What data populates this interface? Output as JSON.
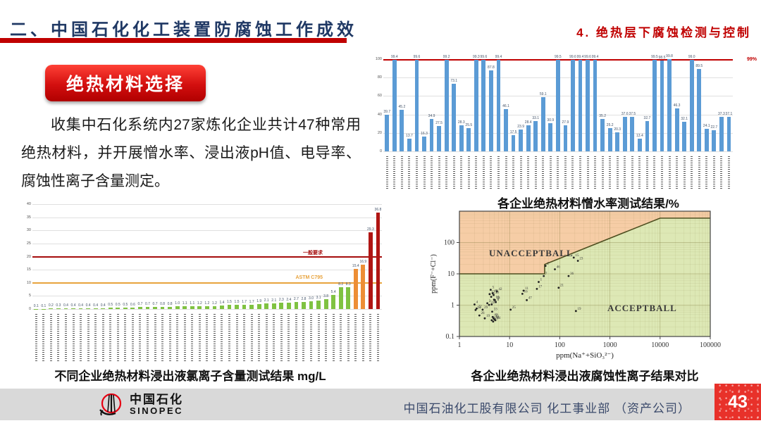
{
  "slide": {
    "title": "二、中国石化化工装置防腐蚀工作成效",
    "section_heading": "4.  绝热层下腐蚀检测与控制",
    "badge": "绝热材料选择",
    "body_text": "收集中石化系统内27家炼化企业共计47种常用绝热材料，并开展憎水率、浸出液pH值、电导率、腐蚀性离子含量测定。",
    "page_number": "43"
  },
  "footer": {
    "logo_cn": "中国石化",
    "logo_en": "SINOPEC",
    "company": "中国石油化工股有限公司  化工事业部 （资产公司）"
  },
  "colors": {
    "accent_red": "#c00000",
    "title_navy": "#1f3864",
    "bar_blue": "#5b9bd5",
    "bar_green": "#7fc241",
    "bar_orange": "#ed8e35",
    "bar_dark_red": "#b01513",
    "scatter_unacceptable_fill": "#f6cda6",
    "scatter_acceptable_fill": "#dde8b5"
  },
  "chart_data": [
    {
      "type": "bar",
      "title": "各企业绝热材料憎水率测试结果/%",
      "ylabel": "",
      "ylim": [
        0,
        100
      ],
      "yticks": [
        0,
        20,
        40,
        60,
        80,
        100
      ],
      "bar_color": "#5b9bd5",
      "ref_lines": [
        {
          "value": 99,
          "label": "99%",
          "color": "#c00000"
        }
      ],
      "x_labels_note": "47 vertical company/material names, illegible at this resolution",
      "values": [
        39.7,
        99.4,
        45.2,
        13.7,
        99.6,
        16.3,
        34.9,
        27.5,
        99.2,
        73.1,
        28.3,
        25.5,
        99.3,
        99.6,
        87.8,
        99.4,
        46.1,
        17.5,
        23.9,
        28.4,
        33.1,
        59.1,
        30.9,
        99.5,
        27.9,
        99.6,
        99.4,
        99.6,
        99.4,
        35.2,
        25.2,
        20.3,
        37.6,
        37.5,
        13.4,
        32.7,
        99.5,
        98.5,
        99.8,
        46.3,
        32.1,
        99.0,
        89.5,
        24.1,
        22.7,
        37.3,
        37.1
      ]
    },
    {
      "type": "bar",
      "title": "不同企业绝热材料浸出液氯离子含量测试结果 mg/L",
      "ylabel": "",
      "ylim": [
        0,
        40
      ],
      "yticks": [
        0,
        5,
        10,
        15,
        20,
        25,
        30,
        35,
        40
      ],
      "color_thresholds": [
        {
          "max": 10,
          "color": "#7fc241"
        },
        {
          "max": 20,
          "color": "#ed8e35"
        },
        {
          "max": 100,
          "color": "#b01513"
        }
      ],
      "ref_lines": [
        {
          "value": 20,
          "label": "一般要求",
          "color": "#a50d0d"
        },
        {
          "value": 10,
          "label": "ASTM C795",
          "color": "#e8a33d"
        }
      ],
      "x_labels_note": "47 vertical company/material names, illegible at this resolution",
      "values": [
        0.1,
        0.1,
        0.2,
        0.3,
        0.4,
        0.4,
        0.4,
        0.4,
        0.4,
        0.4,
        0.5,
        0.5,
        0.5,
        0.6,
        0.7,
        0.7,
        0.7,
        0.8,
        0.8,
        1.0,
        1.1,
        1.1,
        1.2,
        1.2,
        1.2,
        1.4,
        1.5,
        1.5,
        1.7,
        1.7,
        1.9,
        2.1,
        2.1,
        2.3,
        2.4,
        2.7,
        2.8,
        3.0,
        3.1,
        3.8,
        5.4,
        8.2,
        8.3,
        15.4,
        16.9,
        29.3,
        36.8
      ]
    },
    {
      "type": "scatter",
      "title": "各企业绝热材料浸出液腐蚀性离子结果对比",
      "xlabel": "ppm(Na⁺+SiO₃²⁻)",
      "ylabel": "ppm(F⁻+Cl⁻)",
      "xscale": "log",
      "yscale": "log",
      "xlim": [
        1,
        100000
      ],
      "ylim": [
        0.1,
        1000
      ],
      "xticks": [
        "1",
        "10",
        "100",
        "1000",
        "10000",
        "100000"
      ],
      "yticks": [
        "0.1",
        "1",
        "10",
        "100"
      ],
      "region_labels": {
        "unacceptable": "UNACCEPTBALL",
        "acceptable": "ACCEPTBALL"
      },
      "boundary": [
        [
          1,
          10
        ],
        [
          50,
          10
        ],
        [
          50,
          20
        ],
        [
          10000,
          600
        ],
        [
          100000,
          600
        ]
      ],
      "points": [
        {
          "x": 2.0,
          "y": 1.05,
          "label": "4"
        },
        {
          "x": 2.2,
          "y": 0.78,
          "label": "22"
        },
        {
          "x": 2.1,
          "y": 0.7,
          "label": "24"
        },
        {
          "x": 2.9,
          "y": 0.72,
          "label": "29"
        },
        {
          "x": 2.5,
          "y": 0.47,
          "label": "26"
        },
        {
          "x": 3.2,
          "y": 0.38,
          "label": "19"
        },
        {
          "x": 3.6,
          "y": 1.15,
          "label": "3"
        },
        {
          "x": 3.9,
          "y": 1.02,
          "label": "31"
        },
        {
          "x": 4.2,
          "y": 3.1,
          "label": "5"
        },
        {
          "x": 5.6,
          "y": 2.75,
          "label": "42"
        },
        {
          "x": 4.0,
          "y": 2.25,
          "label": "12"
        },
        {
          "x": 4.6,
          "y": 2.4,
          "label": "40"
        },
        {
          "x": 4.8,
          "y": 2.1,
          "label": "30"
        },
        {
          "x": 4.3,
          "y": 1.85,
          "label": "9"
        },
        {
          "x": 4.9,
          "y": 1.5,
          "label": "18"
        },
        {
          "x": 5.1,
          "y": 1.45,
          "label": "14"
        },
        {
          "x": 5.3,
          "y": 1.25,
          "label": "8"
        },
        {
          "x": 4.4,
          "y": 1.05,
          "label": "32"
        },
        {
          "x": 4.5,
          "y": 0.62,
          "label": "33"
        },
        {
          "x": 4.6,
          "y": 0.42,
          "label": "43"
        },
        {
          "x": 4.8,
          "y": 0.38,
          "label": "35"
        },
        {
          "x": 5.0,
          "y": 0.35,
          "label": "41"
        },
        {
          "x": 5.2,
          "y": 0.33,
          "label": "44"
        },
        {
          "x": 4.4,
          "y": 0.33,
          "label": "37"
        },
        {
          "x": 4.7,
          "y": 0.3,
          "label": "27"
        },
        {
          "x": 10.5,
          "y": 0.72,
          "label": "25"
        },
        {
          "x": 19,
          "y": 2.9,
          "label": "11"
        },
        {
          "x": 18,
          "y": 2.3,
          "label": "16"
        },
        {
          "x": 22,
          "y": 1.45,
          "label": "47"
        },
        {
          "x": 35,
          "y": 3.3,
          "label": "17"
        },
        {
          "x": 38,
          "y": 5.5,
          "label": "1"
        },
        {
          "x": 48,
          "y": 8.5,
          "label": "7"
        },
        {
          "x": 52,
          "y": 18,
          "label": "2"
        },
        {
          "x": 80,
          "y": 14,
          "label": "46"
        },
        {
          "x": 190,
          "y": 33,
          "label": "15"
        },
        {
          "x": 230,
          "y": 26,
          "label": "23"
        },
        {
          "x": 150,
          "y": 8.5,
          "label": "36"
        },
        {
          "x": 95,
          "y": 3.6,
          "label": "21"
        },
        {
          "x": 210,
          "y": 0.65,
          "label": "19"
        }
      ]
    }
  ]
}
